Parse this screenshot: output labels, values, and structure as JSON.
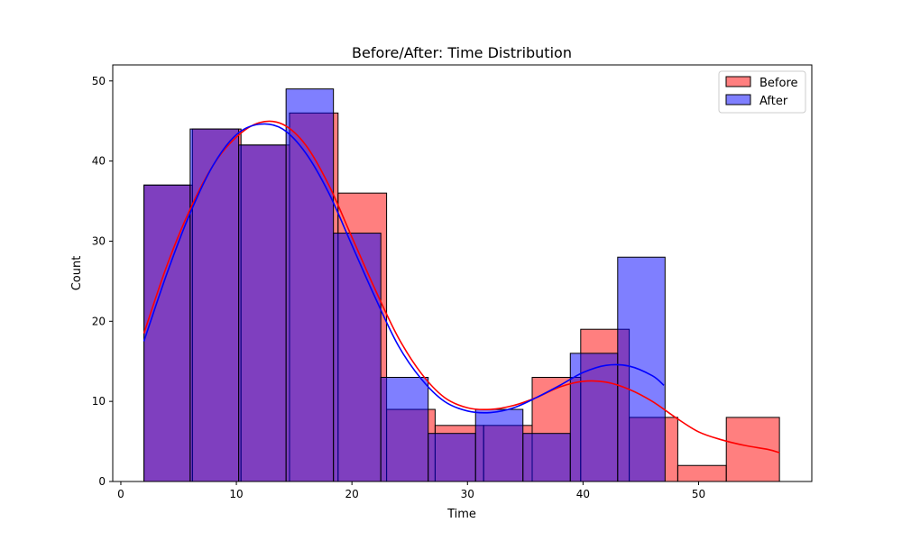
{
  "chart_data": {
    "type": "bar",
    "title": "Before/After: Time Distribution",
    "xlabel": "Time",
    "ylabel": "Count",
    "xlim": [
      -0.7,
      59.8
    ],
    "ylim": [
      0,
      52
    ],
    "xticks": [
      0,
      10,
      20,
      30,
      40,
      50
    ],
    "yticks": [
      0,
      10,
      20,
      30,
      40,
      50
    ],
    "legend_position": "top-right",
    "series": [
      {
        "name": "Before",
        "color": "#ff0000",
        "bins": [
          {
            "x0": 2.0,
            "x1": 6.2,
            "value": 37
          },
          {
            "x0": 6.2,
            "x1": 10.4,
            "value": 44
          },
          {
            "x0": 10.4,
            "x1": 14.6,
            "value": 42
          },
          {
            "x0": 14.6,
            "x1": 18.8,
            "value": 46
          },
          {
            "x0": 18.8,
            "x1": 23.0,
            "value": 36
          },
          {
            "x0": 23.0,
            "x1": 27.2,
            "value": 9
          },
          {
            "x0": 27.2,
            "x1": 31.4,
            "value": 7
          },
          {
            "x0": 31.4,
            "x1": 35.6,
            "value": 7
          },
          {
            "x0": 35.6,
            "x1": 39.8,
            "value": 13
          },
          {
            "x0": 39.8,
            "x1": 44.0,
            "value": 19
          },
          {
            "x0": 44.0,
            "x1": 48.2,
            "value": 8
          },
          {
            "x0": 48.2,
            "x1": 52.4,
            "value": 2
          },
          {
            "x0": 52.4,
            "x1": 57.0,
            "value": 8
          }
        ],
        "kde": [
          [
            2,
            18.5
          ],
          [
            4,
            27
          ],
          [
            6,
            34
          ],
          [
            8,
            39.5
          ],
          [
            10,
            43
          ],
          [
            12,
            44.8
          ],
          [
            14,
            44.6
          ],
          [
            16,
            42
          ],
          [
            18,
            37
          ],
          [
            20,
            30.5
          ],
          [
            22,
            24
          ],
          [
            24,
            18
          ],
          [
            26,
            13.5
          ],
          [
            28,
            10.5
          ],
          [
            30,
            9.2
          ],
          [
            32,
            9
          ],
          [
            34,
            9.5
          ],
          [
            36,
            10.5
          ],
          [
            38,
            11.8
          ],
          [
            40,
            12.5
          ],
          [
            42,
            12.4
          ],
          [
            44,
            11.5
          ],
          [
            46,
            10
          ],
          [
            48,
            8
          ],
          [
            50,
            6.2
          ],
          [
            52,
            5.2
          ],
          [
            54,
            4.5
          ],
          [
            56,
            4
          ],
          [
            57,
            3.6
          ]
        ]
      },
      {
        "name": "After",
        "color": "#0000ff",
        "bins": [
          {
            "x0": 2.0,
            "x1": 6.0,
            "value": 37
          },
          {
            "x0": 6.0,
            "x1": 10.2,
            "value": 44
          },
          {
            "x0": 10.2,
            "x1": 14.3,
            "value": 42
          },
          {
            "x0": 14.3,
            "x1": 18.4,
            "value": 49
          },
          {
            "x0": 18.4,
            "x1": 22.5,
            "value": 31
          },
          {
            "x0": 22.5,
            "x1": 26.6,
            "value": 13
          },
          {
            "x0": 26.6,
            "x1": 30.7,
            "value": 6
          },
          {
            "x0": 30.7,
            "x1": 34.8,
            "value": 9
          },
          {
            "x0": 34.8,
            "x1": 38.9,
            "value": 6
          },
          {
            "x0": 38.9,
            "x1": 43.0,
            "value": 16
          },
          {
            "x0": 43.0,
            "x1": 47.1,
            "value": 28
          }
        ],
        "kde": [
          [
            2,
            17.5
          ],
          [
            4,
            26
          ],
          [
            6,
            33.5
          ],
          [
            8,
            39.5
          ],
          [
            10,
            43.3
          ],
          [
            12,
            44.6
          ],
          [
            14,
            44
          ],
          [
            16,
            41
          ],
          [
            18,
            36
          ],
          [
            20,
            29.5
          ],
          [
            22,
            23
          ],
          [
            24,
            17
          ],
          [
            26,
            12.8
          ],
          [
            28,
            10
          ],
          [
            30,
            8.8
          ],
          [
            32,
            8.6
          ],
          [
            34,
            9.2
          ],
          [
            36,
            10.5
          ],
          [
            38,
            12
          ],
          [
            40,
            13.6
          ],
          [
            42,
            14.5
          ],
          [
            44,
            14.4
          ],
          [
            46,
            13.2
          ],
          [
            47,
            12
          ]
        ]
      }
    ]
  }
}
